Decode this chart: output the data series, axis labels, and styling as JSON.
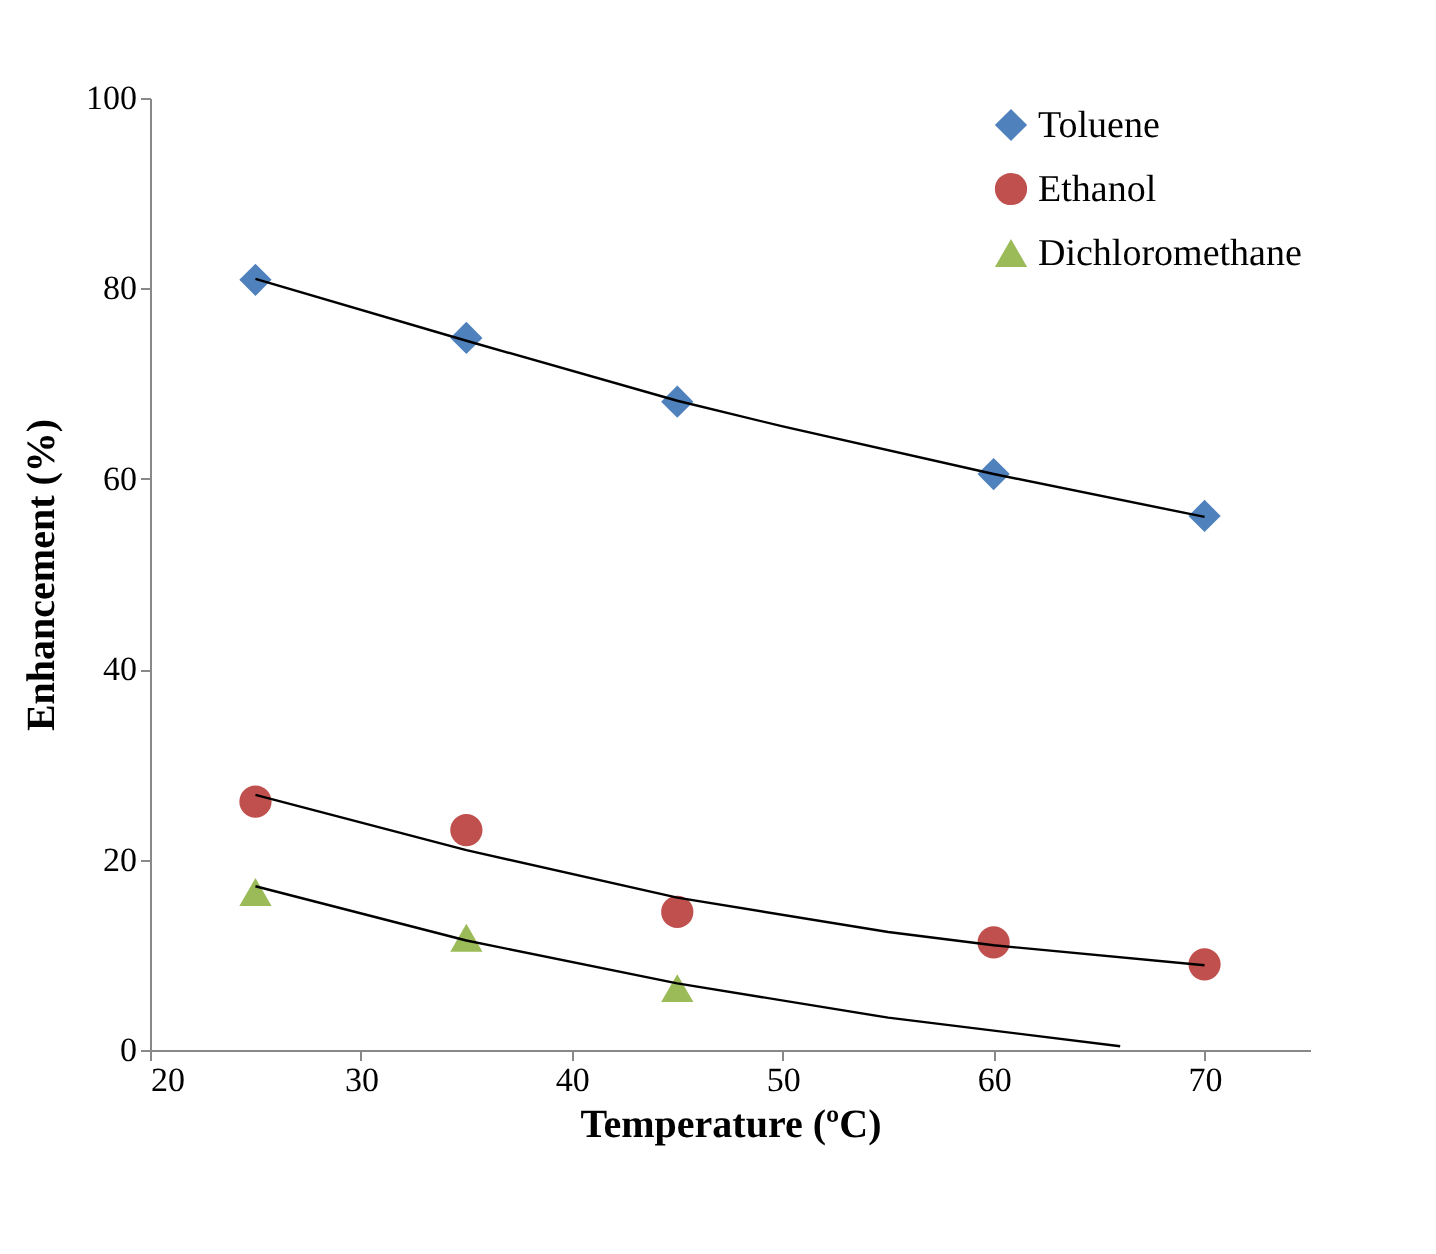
{
  "chart_data": {
    "type": "scatter",
    "xlabel": "Temperature (ºC)",
    "ylabel": "Enhancement (%)",
    "x": [
      25,
      35,
      45,
      60,
      70
    ],
    "xlim": [
      20,
      75
    ],
    "xticks": [
      20,
      30,
      40,
      50,
      60,
      70
    ],
    "ylim": [
      0,
      100
    ],
    "yticks": [
      0,
      20,
      40,
      60,
      80,
      100
    ],
    "grid": false,
    "legend": "top right",
    "series": [
      {
        "name": "Toluene",
        "color": "#4f81bd",
        "marker": "diamond",
        "values": [
          80.9,
          74.8,
          68.1,
          60.5,
          56.1
        ]
      },
      {
        "name": "Ethanol",
        "color": "#c0504d",
        "marker": "circle",
        "values": [
          26.1,
          23.1,
          14.5,
          11.3,
          9.0
        ]
      },
      {
        "name": "Dichloromethane",
        "color": "#9bbb59",
        "marker": "triangle",
        "x": [
          25,
          35,
          45
        ],
        "values": [
          16.6,
          11.8,
          6.5
        ]
      },
      {
        "type": "line",
        "color": "#000000",
        "marker": "none",
        "x": [
          25,
          35,
          45,
          50,
          60,
          70
        ],
        "values": [
          81,
          74.5,
          68.2,
          65.5,
          60.5,
          56
        ]
      },
      {
        "type": "line",
        "color": "#000000",
        "marker": "none",
        "x": [
          25,
          35,
          45,
          55,
          60,
          70
        ],
        "values": [
          26.8,
          21,
          16,
          12.4,
          11,
          8.9
        ]
      },
      {
        "type": "line",
        "color": "#000000",
        "marker": "none",
        "x": [
          25,
          35,
          45,
          55,
          66
        ],
        "values": [
          17.2,
          11.5,
          7,
          3.4,
          0.4
        ]
      }
    ]
  }
}
